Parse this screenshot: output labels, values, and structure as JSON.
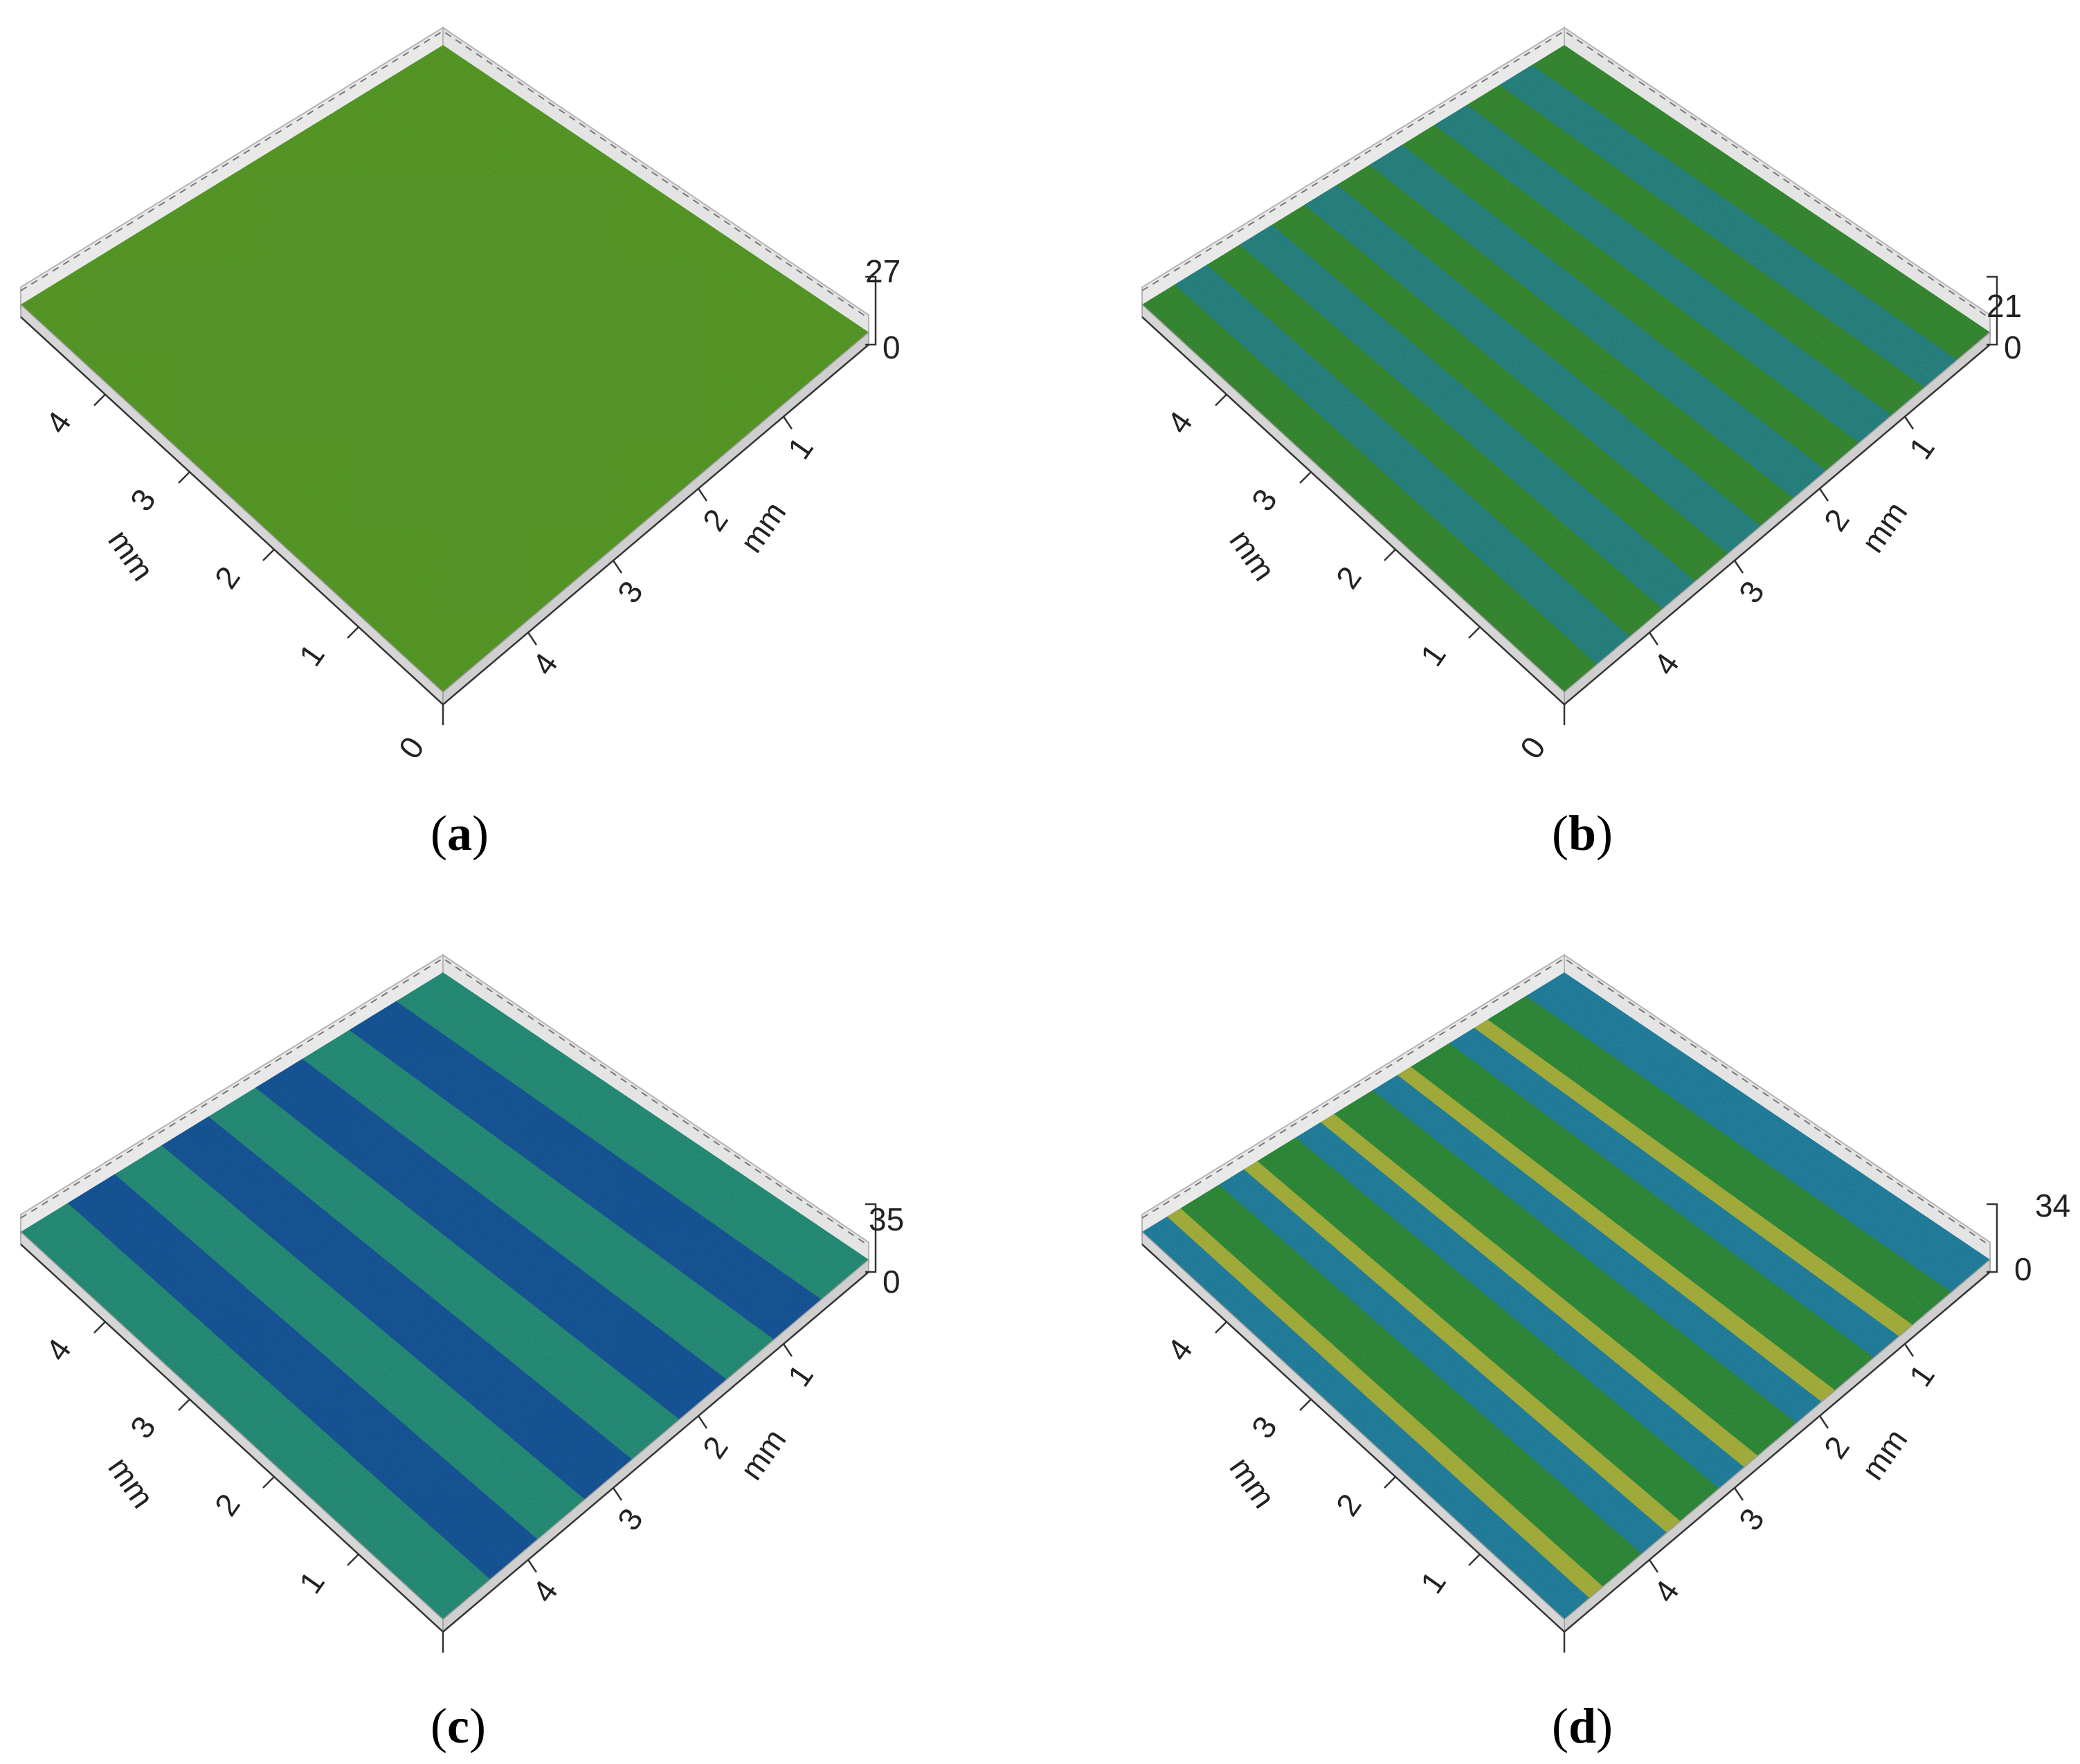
{
  "panels": [
    {
      "id": "a",
      "label": "a",
      "z_max": "27",
      "z_min": "0",
      "x_axis": {
        "unit": "mm",
        "ticks": [
          "1",
          "2",
          "3",
          "4"
        ],
        "origin": "0"
      },
      "y_axis": {
        "unit": "mm",
        "ticks": [
          "1",
          "2",
          "3",
          "4"
        ]
      },
      "colors": {
        "base": "#3e9a2e",
        "accent": "#a7b81a",
        "stripe": "#3e9a2e"
      },
      "stripe_count": 0
    },
    {
      "id": "b",
      "label": "b",
      "z_max": "21",
      "z_min": "0",
      "x_axis": {
        "unit": "mm",
        "ticks": [
          "1",
          "2",
          "3",
          "4"
        ],
        "origin": "0"
      },
      "y_axis": {
        "unit": "mm",
        "ticks": [
          "1",
          "2",
          "3",
          "4"
        ]
      },
      "colors": {
        "base": "#3f9a3a",
        "accent": "#7aa52a",
        "stripe": "#2e92a0"
      },
      "stripe_count": 6
    },
    {
      "id": "c",
      "label": "c",
      "z_max": "35",
      "z_min": "0",
      "x_axis": {
        "unit": "mm",
        "ticks": [
          "1",
          "2",
          "3",
          "4"
        ],
        "origin": ""
      },
      "y_axis": {
        "unit": "mm",
        "ticks": [
          "1",
          "2",
          "3",
          "4"
        ]
      },
      "colors": {
        "base": "#2f9e86",
        "accent": "#4aa36a",
        "stripe": "#1f56b0"
      },
      "stripe_count": 4
    },
    {
      "id": "d",
      "label": "d",
      "z_max": "34",
      "z_min": "0",
      "x_axis": {
        "unit": "mm",
        "ticks": [
          "1",
          "2",
          "3",
          "4"
        ],
        "origin": ""
      },
      "y_axis": {
        "unit": "mm",
        "ticks": [
          "1",
          "2",
          "3",
          "4"
        ]
      },
      "colors": {
        "base": "#2c8fb0",
        "accent": "#9c9e22",
        "stripe": "#3b9e33"
      },
      "stripe_count": 5
    }
  ]
}
